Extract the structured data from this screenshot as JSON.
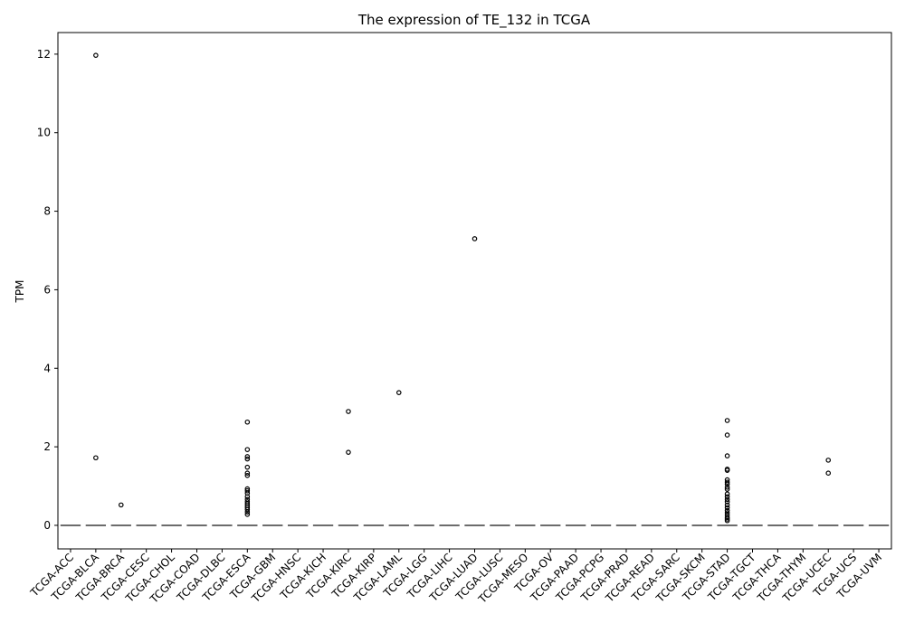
{
  "chart_data": {
    "type": "box",
    "title": "The expression of TE_132 in TCGA",
    "xlabel": "",
    "ylabel": "TPM",
    "ylim": [
      -0.6,
      12.55
    ],
    "yticks": [
      0,
      2,
      4,
      6,
      8,
      10,
      12
    ],
    "grid": false,
    "categories": [
      "TCGA-ACC",
      "TCGA-BLCA",
      "TCGA-BRCA",
      "TCGA-CESC",
      "TCGA-CHOL",
      "TCGA-COAD",
      "TCGA-DLBC",
      "TCGA-ESCA",
      "TCGA-GBM",
      "TCGA-HNSC",
      "TCGA-KICH",
      "TCGA-KIRC",
      "TCGA-KIRP",
      "TCGA-LAML",
      "TCGA-LGG",
      "TCGA-LIHC",
      "TCGA-LUAD",
      "TCGA-LUSC",
      "TCGA-MESO",
      "TCGA-OV",
      "TCGA-PAAD",
      "TCGA-PCPG",
      "TCGA-PRAD",
      "TCGA-READ",
      "TCGA-SARC",
      "TCGA-SKCM",
      "TCGA-STAD",
      "TCGA-TGCT",
      "TCGA-THCA",
      "TCGA-THYM",
      "TCGA-UCEC",
      "TCGA-UCS",
      "TCGA-UVM"
    ],
    "median": 0,
    "outliers": {
      "TCGA-BLCA": [
        11.97,
        1.72
      ],
      "TCGA-BRCA": [
        0.52
      ],
      "TCGA-ESCA": [
        2.63,
        1.93,
        1.75,
        1.69,
        1.48,
        1.33,
        1.27,
        0.93,
        0.88,
        0.82,
        0.73,
        0.66,
        0.6,
        0.55,
        0.5,
        0.45,
        0.4,
        0.34,
        0.28
      ],
      "TCGA-KIRC": [
        2.9,
        1.86
      ],
      "TCGA-LAML": [
        3.38
      ],
      "TCGA-LUAD": [
        7.3
      ],
      "TCGA-STAD": [
        2.67,
        2.3,
        1.77,
        1.43,
        1.4,
        1.16,
        1.1,
        1.05,
        0.97,
        0.92,
        0.8,
        0.73,
        0.66,
        0.6,
        0.52,
        0.45,
        0.38,
        0.32,
        0.26,
        0.2,
        0.16,
        0.12
      ],
      "TCGA-UCEC": [
        1.66,
        1.33
      ]
    }
  }
}
